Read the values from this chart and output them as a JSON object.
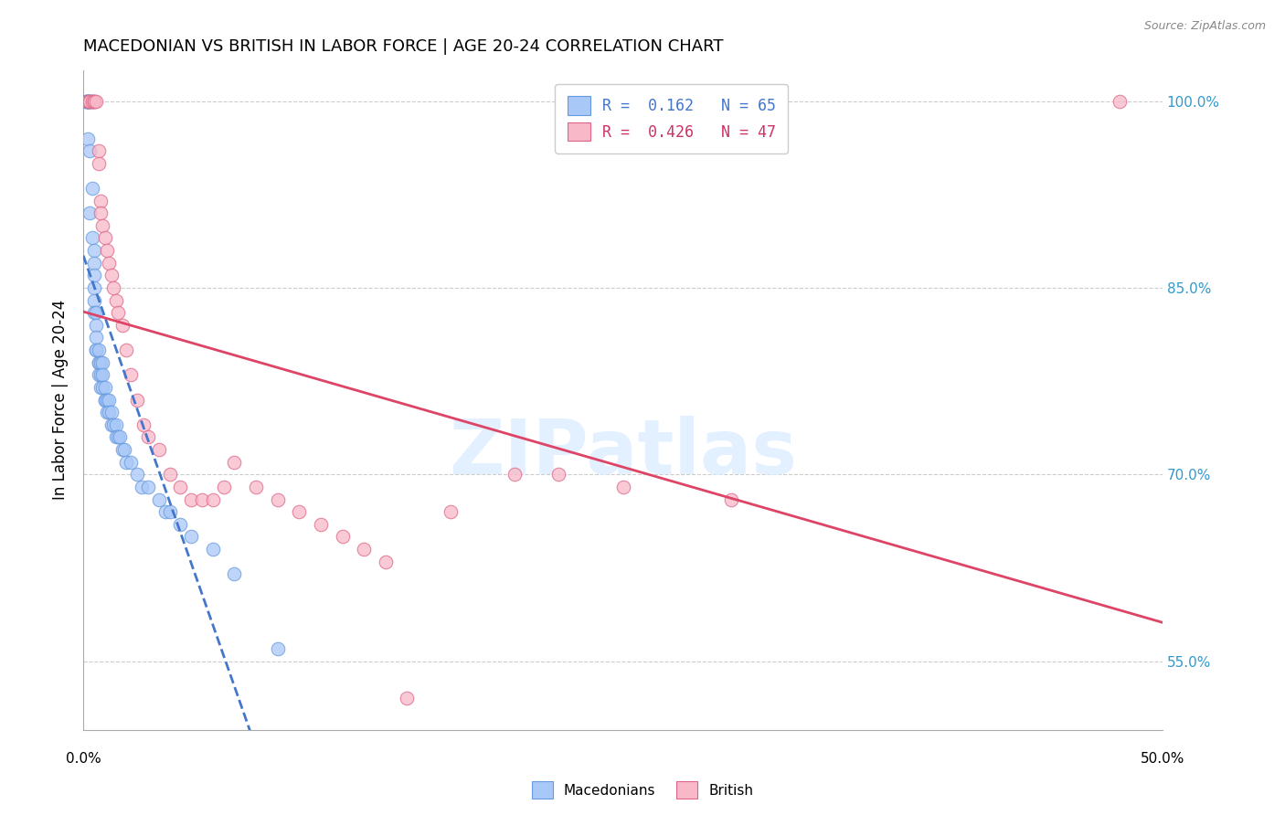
{
  "title": "MACEDONIAN VS BRITISH IN LABOR FORCE | AGE 20-24 CORRELATION CHART",
  "source": "Source: ZipAtlas.com",
  "ylabel": "In Labor Force | Age 20-24",
  "ytick_labels": [
    "100.0%",
    "85.0%",
    "70.0%",
    "55.0%"
  ],
  "ytick_values": [
    1.0,
    0.85,
    0.7,
    0.55
  ],
  "xmin": 0.0,
  "xmax": 0.5,
  "ymin": 0.495,
  "ymax": 1.025,
  "mac_scatter_facecolor": "#a8c8f8",
  "mac_scatter_edgecolor": "#6699dd",
  "brit_scatter_facecolor": "#f8b8c8",
  "brit_scatter_edgecolor": "#dd6688",
  "mac_line_color": "#4477cc",
  "brit_line_color": "#dd4466",
  "legend_R_mac": "0.162",
  "legend_N_mac": "65",
  "legend_R_brit": "0.426",
  "legend_N_brit": "47",
  "watermark_text": "ZIPatlas",
  "mac_x": [
    0.001,
    0.001,
    0.002,
    0.002,
    0.002,
    0.002,
    0.002,
    0.003,
    0.003,
    0.003,
    0.003,
    0.004,
    0.004,
    0.004,
    0.004,
    0.005,
    0.005,
    0.005,
    0.005,
    0.005,
    0.005,
    0.006,
    0.006,
    0.006,
    0.006,
    0.006,
    0.007,
    0.007,
    0.007,
    0.007,
    0.008,
    0.008,
    0.008,
    0.009,
    0.009,
    0.009,
    0.01,
    0.01,
    0.01,
    0.011,
    0.011,
    0.012,
    0.012,
    0.013,
    0.013,
    0.014,
    0.015,
    0.015,
    0.016,
    0.017,
    0.018,
    0.019,
    0.02,
    0.022,
    0.025,
    0.027,
    0.03,
    0.035,
    0.038,
    0.04,
    0.045,
    0.05,
    0.06,
    0.07,
    0.09
  ],
  "mac_y": [
    1.0,
    1.0,
    1.0,
    1.0,
    1.0,
    1.0,
    0.97,
    1.0,
    1.0,
    0.96,
    0.91,
    1.0,
    1.0,
    0.93,
    0.89,
    0.88,
    0.87,
    0.86,
    0.85,
    0.84,
    0.83,
    0.83,
    0.82,
    0.81,
    0.8,
    0.8,
    0.8,
    0.79,
    0.79,
    0.78,
    0.79,
    0.78,
    0.77,
    0.79,
    0.78,
    0.77,
    0.77,
    0.76,
    0.76,
    0.76,
    0.75,
    0.76,
    0.75,
    0.75,
    0.74,
    0.74,
    0.74,
    0.73,
    0.73,
    0.73,
    0.72,
    0.72,
    0.71,
    0.71,
    0.7,
    0.69,
    0.69,
    0.68,
    0.67,
    0.67,
    0.66,
    0.65,
    0.64,
    0.62,
    0.56
  ],
  "brit_x": [
    0.002,
    0.003,
    0.003,
    0.004,
    0.005,
    0.005,
    0.006,
    0.007,
    0.007,
    0.008,
    0.008,
    0.009,
    0.01,
    0.011,
    0.012,
    0.013,
    0.014,
    0.015,
    0.016,
    0.018,
    0.02,
    0.022,
    0.025,
    0.028,
    0.03,
    0.035,
    0.04,
    0.045,
    0.05,
    0.055,
    0.06,
    0.065,
    0.07,
    0.08,
    0.09,
    0.1,
    0.11,
    0.12,
    0.13,
    0.14,
    0.15,
    0.17,
    0.2,
    0.22,
    0.25,
    0.3,
    0.48
  ],
  "brit_y": [
    1.0,
    1.0,
    1.0,
    1.0,
    1.0,
    1.0,
    1.0,
    0.96,
    0.95,
    0.92,
    0.91,
    0.9,
    0.89,
    0.88,
    0.87,
    0.86,
    0.85,
    0.84,
    0.83,
    0.82,
    0.8,
    0.78,
    0.76,
    0.74,
    0.73,
    0.72,
    0.7,
    0.69,
    0.68,
    0.68,
    0.68,
    0.69,
    0.71,
    0.69,
    0.68,
    0.67,
    0.66,
    0.65,
    0.64,
    0.63,
    0.52,
    0.67,
    0.7,
    0.7,
    0.69,
    0.68,
    1.0
  ]
}
